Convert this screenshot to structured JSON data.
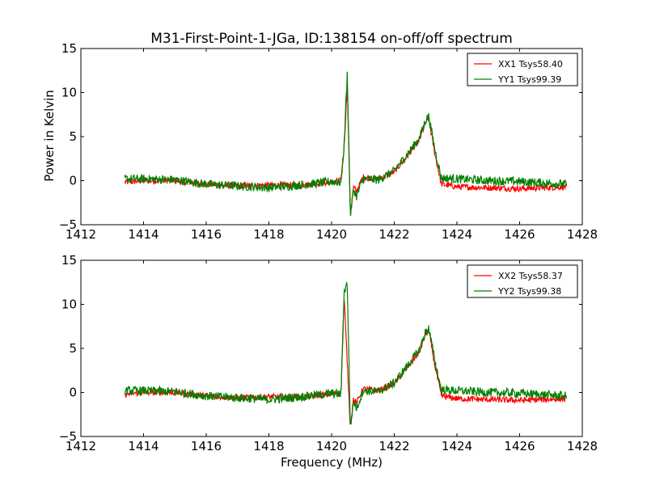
{
  "figure": {
    "title": "M31-First-Point-1-JGa, ID:138154 on-off/off spectrum",
    "ylabel": "Power in Kelvin",
    "xlabel": "Frequency (MHz)"
  },
  "colors": {
    "xx": "#ff0000",
    "yy": "#008000"
  },
  "chart_data": [
    {
      "type": "line",
      "xlim": [
        1412,
        1428
      ],
      "ylim": [
        -5,
        15
      ],
      "xticks": [
        1412,
        1414,
        1416,
        1418,
        1420,
        1422,
        1424,
        1426,
        1428
      ],
      "yticks": [
        -5,
        0,
        5,
        10,
        15
      ],
      "ylabel": "Power in Kelvin",
      "xlabel": "",
      "legend_position": "top-right",
      "series": [
        {
          "name": "XX1 Tsys58.40",
          "color": "#ff0000",
          "x": [
            1413.4,
            1414.0,
            1415.0,
            1416.0,
            1417.0,
            1418.0,
            1419.0,
            1420.0,
            1420.3,
            1420.4,
            1420.5,
            1420.6,
            1420.7,
            1420.8,
            1421.0,
            1421.5,
            1422.0,
            1422.5,
            1422.8,
            1423.0,
            1423.1,
            1423.3,
            1423.5,
            1424.0,
            1425.0,
            1426.0,
            1427.5
          ],
          "y": [
            -0.2,
            0.0,
            0.0,
            -0.4,
            -0.6,
            -0.5,
            -0.5,
            -0.2,
            0.0,
            3.8,
            10.8,
            -3.9,
            -0.8,
            -1.2,
            0.4,
            0.2,
            1.0,
            3.2,
            4.6,
            6.6,
            7.0,
            3.0,
            -0.4,
            -0.7,
            -0.8,
            -0.9,
            -0.7
          ]
        },
        {
          "name": "YY1 Tsys99.39",
          "color": "#008000",
          "x": [
            1413.4,
            1414.0,
            1415.0,
            1416.0,
            1417.0,
            1418.0,
            1419.0,
            1420.0,
            1420.3,
            1420.4,
            1420.5,
            1420.6,
            1420.7,
            1420.8,
            1421.0,
            1421.5,
            1422.0,
            1422.5,
            1422.8,
            1423.0,
            1423.1,
            1423.3,
            1423.5,
            1424.0,
            1425.0,
            1426.0,
            1427.5
          ],
          "y": [
            0.2,
            0.2,
            0.1,
            -0.4,
            -0.6,
            -0.8,
            -0.5,
            -0.1,
            -0.2,
            4.0,
            12.3,
            -3.9,
            -1.0,
            -1.8,
            0.2,
            0.1,
            1.1,
            3.4,
            4.8,
            6.9,
            7.3,
            3.5,
            0.3,
            0.2,
            0.0,
            -0.1,
            -0.4
          ]
        }
      ]
    },
    {
      "type": "line",
      "xlim": [
        1412,
        1428
      ],
      "ylim": [
        -5,
        15
      ],
      "xticks": [
        1412,
        1414,
        1416,
        1418,
        1420,
        1422,
        1424,
        1426,
        1428
      ],
      "yticks": [
        -5,
        0,
        5,
        10,
        15
      ],
      "ylabel": "",
      "xlabel": "Frequency (MHz)",
      "legend_position": "top-right",
      "series": [
        {
          "name": "XX2 Tsys58.37",
          "color": "#ff0000",
          "x": [
            1413.4,
            1414.0,
            1415.0,
            1416.0,
            1417.0,
            1418.0,
            1419.0,
            1420.0,
            1420.3,
            1420.4,
            1420.5,
            1420.6,
            1420.7,
            1420.8,
            1421.0,
            1421.5,
            1422.0,
            1422.5,
            1422.8,
            1423.0,
            1423.1,
            1423.3,
            1423.5,
            1424.0,
            1425.0,
            1426.0,
            1427.5
          ],
          "y": [
            -0.2,
            0.0,
            0.0,
            -0.4,
            -0.6,
            -0.5,
            -0.5,
            -0.2,
            0.0,
            10.8,
            3.5,
            -3.9,
            -0.8,
            -1.2,
            0.4,
            0.2,
            1.0,
            3.2,
            4.6,
            6.6,
            7.0,
            3.0,
            -0.4,
            -0.7,
            -0.8,
            -0.9,
            -0.7
          ]
        },
        {
          "name": "YY2 Tsys99.38",
          "color": "#008000",
          "x": [
            1413.4,
            1414.0,
            1415.0,
            1416.0,
            1417.0,
            1418.0,
            1419.0,
            1420.0,
            1420.3,
            1420.4,
            1420.5,
            1420.6,
            1420.7,
            1420.8,
            1421.0,
            1421.5,
            1422.0,
            1422.5,
            1422.8,
            1423.0,
            1423.1,
            1423.3,
            1423.5,
            1424.0,
            1425.0,
            1426.0,
            1427.5
          ],
          "y": [
            0.2,
            0.2,
            0.1,
            -0.4,
            -0.6,
            -0.8,
            -0.5,
            -0.1,
            -0.2,
            11.5,
            12.4,
            -3.9,
            -1.0,
            -1.8,
            0.2,
            0.1,
            1.1,
            3.4,
            4.8,
            6.9,
            7.3,
            3.5,
            0.3,
            0.2,
            0.0,
            -0.1,
            -0.4
          ]
        }
      ]
    }
  ]
}
